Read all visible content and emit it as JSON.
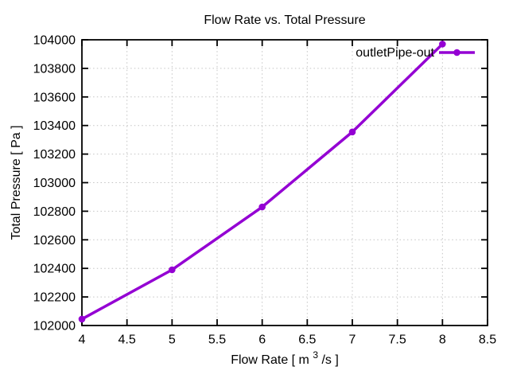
{
  "figure": {
    "background": "#ffffff",
    "xlabel_parts": {
      "pre": "Flow Rate [ m",
      "sup": "3",
      "post": "/s ]"
    }
  },
  "chart_data": {
    "type": "line",
    "title": "Flow Rate vs. Total Pressure",
    "xlabel": "Flow Rate [ m³/s ]",
    "ylabel": "Total Pressure [ Pa ]",
    "xlim": [
      4,
      8.5
    ],
    "ylim": [
      102000,
      104000
    ],
    "xticks": [
      4,
      4.5,
      5,
      5.5,
      6,
      6.5,
      7,
      7.5,
      8,
      8.5
    ],
    "yticks": [
      102000,
      102200,
      102400,
      102600,
      102800,
      103000,
      103200,
      103400,
      103600,
      103800,
      104000
    ],
    "grid": true,
    "legend_position": "top-right-inside",
    "series": [
      {
        "name": "outletPipe-out",
        "color": "#9400D3",
        "marker": "circle",
        "x": [
          4,
          5,
          6,
          7,
          8
        ],
        "y": [
          102045,
          102390,
          102830,
          103355,
          103970
        ]
      }
    ]
  },
  "style": {
    "line_color": "#9400D3",
    "grid_color": "#c4c4c4",
    "axis_color": "#000000",
    "text_color": "#000000"
  }
}
